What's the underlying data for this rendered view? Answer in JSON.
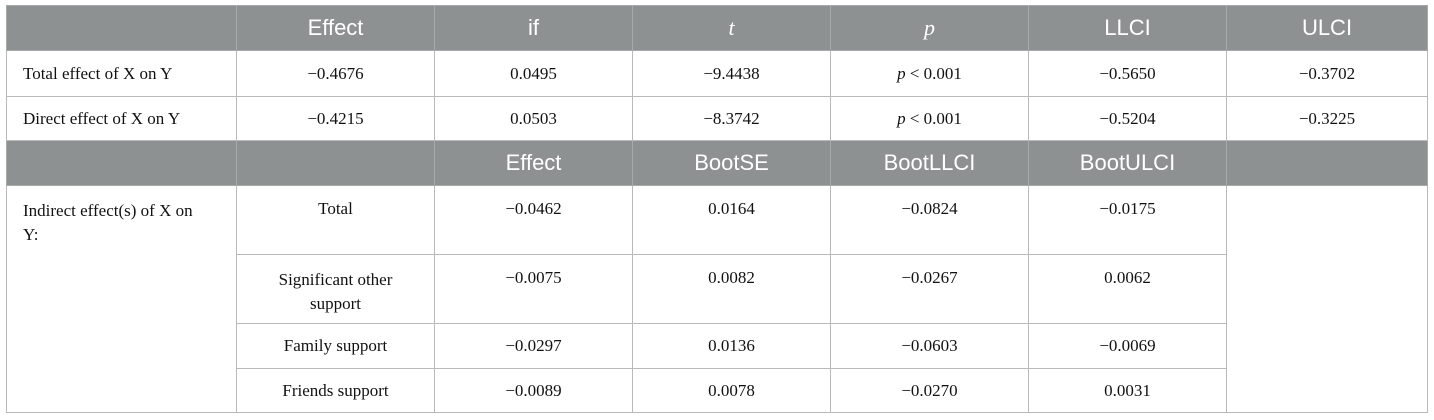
{
  "header1": [
    "Effect",
    "if",
    "t",
    "p",
    "LLCI",
    "ULCI"
  ],
  "rows1": [
    {
      "label": "Total effect of X on Y",
      "effect": "−0.4676",
      "se": "0.0495",
      "t": "−9.4438",
      "p_sym": "p",
      "p_rest": " < 0.001",
      "llci": "−0.5650",
      "ulci": "−0.3702"
    },
    {
      "label": "Direct effect of X on Y",
      "effect": "−0.4215",
      "se": "0.0503",
      "t": "−8.3742",
      "p_sym": "p",
      "p_rest": " < 0.001",
      "llci": "−0.5204",
      "ulci": "−0.3225"
    }
  ],
  "header2": [
    "Effect",
    "BootSE",
    "BootLLCI",
    "BootULCI"
  ],
  "indirect": {
    "label": "Indirect effect(s) of X on Y:",
    "rows": [
      {
        "name": "Total",
        "effect": "−0.0462",
        "bootse": "0.0164",
        "bootllci": "−0.0824",
        "bootulci": "−0.0175"
      },
      {
        "name": "Significant other support",
        "effect": "−0.0075",
        "bootse": "0.0082",
        "bootllci": "−0.0267",
        "bootulci": "0.0062"
      },
      {
        "name": "Family support",
        "effect": "−0.0297",
        "bootse": "0.0136",
        "bootllci": "−0.0603",
        "bootulci": "−0.0069"
      },
      {
        "name": "Friends support",
        "effect": "−0.0089",
        "bootse": "0.0078",
        "bootllci": "−0.0270",
        "bootulci": "0.0031"
      }
    ]
  },
  "colors": {
    "header_bg": "#8e9191",
    "header_text": "#ffffff",
    "border": "#b9b9b9"
  }
}
